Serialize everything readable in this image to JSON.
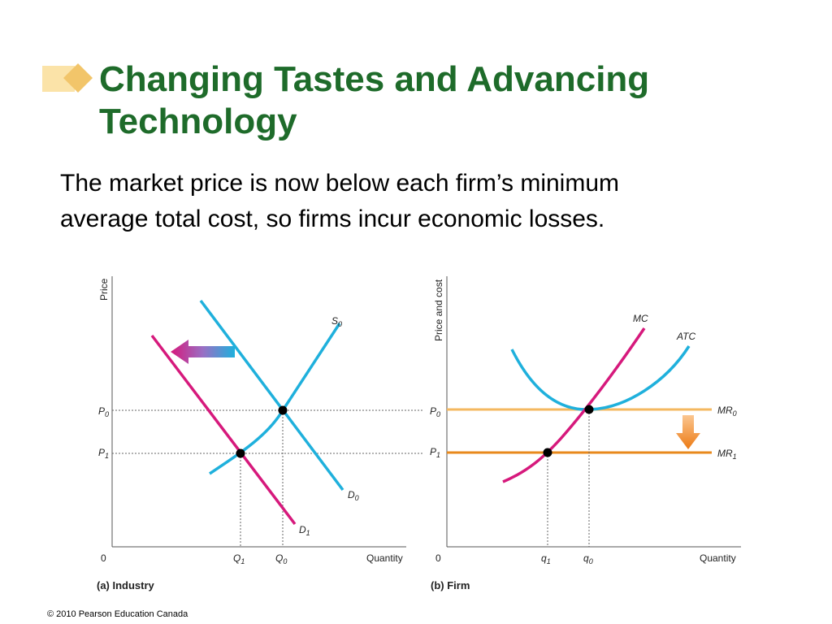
{
  "slide": {
    "title_lines": [
      "Changing Tastes and Advancing",
      "Technology"
    ],
    "body_lines": [
      "The market price is now below each firm’s minimum",
      "average total cost, so firms incur economic losses."
    ],
    "copyright": "© 2010 Pearson Education Canada"
  },
  "colors": {
    "title": "#1e6b2a",
    "demand_supply_cyan": "#1fb0dc",
    "magenta": "#d6197c",
    "mr0_light_orange": "#f4b860",
    "mr1_orange": "#e8891c",
    "bullet_light": "#fbe3a8",
    "bullet_dark": "#f2c56a"
  },
  "industry": {
    "caption": "(a) Industry",
    "y_axis": "Price",
    "x_axis": "Quantity",
    "origin": "0",
    "labels": {
      "p0": {
        "main": "P",
        "sub": "0"
      },
      "p1": {
        "main": "P",
        "sub": "1"
      },
      "q0": {
        "main": "Q",
        "sub": "0"
      },
      "q1": {
        "main": "Q",
        "sub": "1"
      },
      "s0": {
        "main": "S",
        "sub": "0"
      },
      "d0": {
        "main": "D",
        "sub": "0"
      },
      "d1": {
        "main": "D",
        "sub": "1"
      }
    },
    "arrow_icon": "left-arrow-icon"
  },
  "firm": {
    "caption": "(b) Firm",
    "y_axis": "Price and cost",
    "x_axis": "Quantity",
    "origin": "0",
    "labels": {
      "p0": {
        "main": "P",
        "sub": "0"
      },
      "p1": {
        "main": "P",
        "sub": "1"
      },
      "q0": {
        "main": "q",
        "sub": "0"
      },
      "q1": {
        "main": "q",
        "sub": "1"
      },
      "mc": "MC",
      "atc": "ATC",
      "mr0": {
        "main": "MR",
        "sub": "0"
      },
      "mr1": {
        "main": "MR",
        "sub": "1"
      }
    },
    "arrow_icon": "down-arrow-icon"
  }
}
